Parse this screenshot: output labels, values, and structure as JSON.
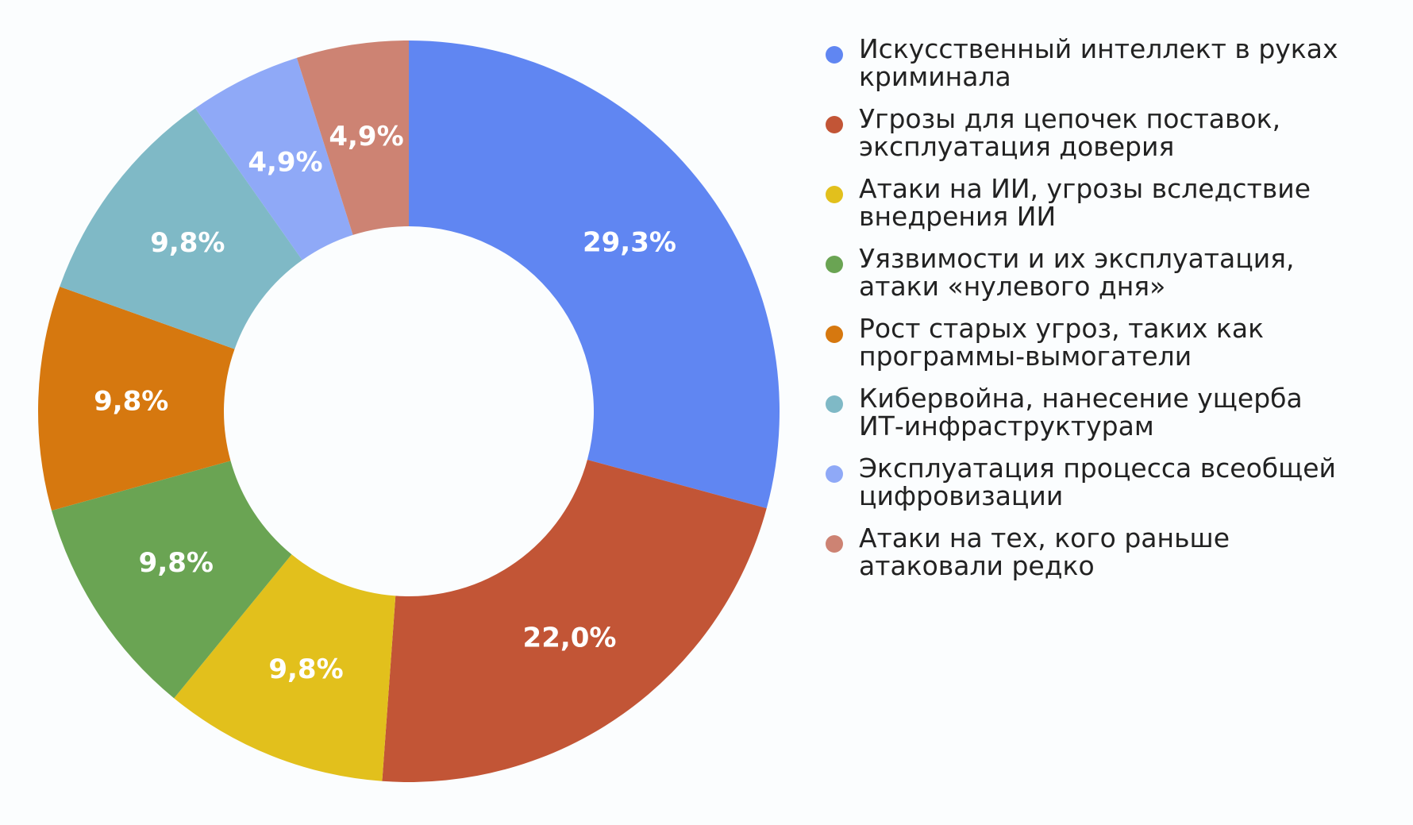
{
  "chart_data": {
    "type": "pie",
    "donut": true,
    "legend_position": "right",
    "slices": [
      {
        "label": "Искусственный интеллект в руках криминала",
        "value": 29.3,
        "value_label": "29,3%",
        "color": "#6086f2"
      },
      {
        "label": "Угрозы для цепочек поставок, эксплуатация доверия",
        "value": 22.0,
        "value_label": "22,0%",
        "color": "#c25536"
      },
      {
        "label": "Атаки на ИИ, угрозы вследствие внедрения ИИ",
        "value": 9.8,
        "value_label": "9,8%",
        "color": "#e2c01c"
      },
      {
        "label": "Уязвимости и их эксплуатация, атаки «нулевого дня»",
        "value": 9.8,
        "value_label": "9,8%",
        "color": "#6aa453"
      },
      {
        "label": "Рост старых угроз, таких как программы-вымогатели",
        "value": 9.8,
        "value_label": "9,8%",
        "color": "#d6780f"
      },
      {
        "label": "Кибервойна, нанесение ущерба ИТ-инфраструктурам",
        "value": 9.8,
        "value_label": "9,8%",
        "color": "#7fb9c6"
      },
      {
        "label": "Эксплуатация процесса всеобщей цифровизации",
        "value": 4.9,
        "value_label": "4,9%",
        "color": "#8fa9f7"
      },
      {
        "label": "Атаки на тех, кого раньше атаковали редко",
        "value": 4.9,
        "value_label": "4,9%",
        "color": "#cd8373"
      }
    ]
  },
  "legend": [
    {
      "text": "Искусственный интеллект в руках\nкриминала",
      "color": "#6086f2"
    },
    {
      "text": "Угрозы для цепочек поставок,\nэксплуатация доверия",
      "color": "#c25536"
    },
    {
      "text": "Атаки на ИИ, угрозы вследствие\nвнедрения ИИ",
      "color": "#e2c01c"
    },
    {
      "text": "Уязвимости и их эксплуатация,\nатаки «нулевого дня»",
      "color": "#6aa453"
    },
    {
      "text": "Рост старых угроз, таких как\nпрограммы-вымогатели",
      "color": "#d6780f"
    },
    {
      "text": "Кибервойна, нанесение ущерба\nИТ-инфраструктурам",
      "color": "#7fb9c6"
    },
    {
      "text": "Эксплуатация процесса всеобщей\nцифровизации",
      "color": "#8fa9f7"
    },
    {
      "text": "Атаки на тех, кого раньше\nатаковали редко",
      "color": "#cd8373"
    }
  ]
}
